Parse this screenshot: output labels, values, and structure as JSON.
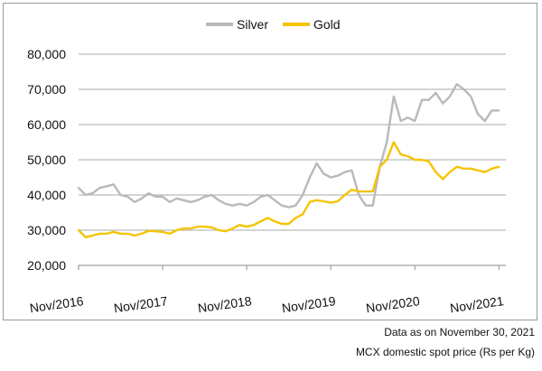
{
  "chart_data": {
    "type": "line",
    "y_ticks": [
      "20,000",
      "30,000",
      "40,000",
      "50,000",
      "60,000",
      "70,000",
      "80,000"
    ],
    "ylim": [
      20000,
      80000
    ],
    "x_ticks": [
      "Nov/2016",
      "Nov/2017",
      "Nov/2018",
      "Nov/2019",
      "Nov/2020",
      "Nov/2021"
    ],
    "xlim": [
      "2016-11",
      "2021-12"
    ],
    "grid": "horizontal",
    "legend_position": "top-center",
    "series": [
      {
        "name": "Silver",
        "color": "#b9b9b9",
        "points": [
          [
            "2016-11",
            42000
          ],
          [
            "2016-12",
            40000
          ],
          [
            "2017-01",
            40500
          ],
          [
            "2017-02",
            42000
          ],
          [
            "2017-03",
            42500
          ],
          [
            "2017-04",
            43000
          ],
          [
            "2017-05",
            40000
          ],
          [
            "2017-06",
            39500
          ],
          [
            "2017-07",
            38000
          ],
          [
            "2017-08",
            39000
          ],
          [
            "2017-09",
            40500
          ],
          [
            "2017-10",
            39500
          ],
          [
            "2017-11",
            39500
          ],
          [
            "2017-12",
            38000
          ],
          [
            "2018-01",
            39000
          ],
          [
            "2018-02",
            38500
          ],
          [
            "2018-03",
            38000
          ],
          [
            "2018-04",
            38500
          ],
          [
            "2018-05",
            39500
          ],
          [
            "2018-06",
            40000
          ],
          [
            "2018-07",
            38500
          ],
          [
            "2018-08",
            37500
          ],
          [
            "2018-09",
            37000
          ],
          [
            "2018-10",
            37500
          ],
          [
            "2018-11",
            37000
          ],
          [
            "2018-12",
            38000
          ],
          [
            "2019-01",
            39500
          ],
          [
            "2019-02",
            40000
          ],
          [
            "2019-03",
            38500
          ],
          [
            "2019-04",
            37000
          ],
          [
            "2019-05",
            36500
          ],
          [
            "2019-06",
            37000
          ],
          [
            "2019-07",
            40000
          ],
          [
            "2019-08",
            45000
          ],
          [
            "2019-09",
            49000
          ],
          [
            "2019-10",
            46000
          ],
          [
            "2019-11",
            45000
          ],
          [
            "2019-12",
            45500
          ],
          [
            "2020-01",
            46500
          ],
          [
            "2020-02",
            47000
          ],
          [
            "2020-03",
            40000
          ],
          [
            "2020-04",
            37000
          ],
          [
            "2020-05",
            37000
          ],
          [
            "2020-06",
            48000
          ],
          [
            "2020-07",
            55000
          ],
          [
            "2020-08",
            68000
          ],
          [
            "2020-09",
            61000
          ],
          [
            "2020-10",
            62000
          ],
          [
            "2020-11",
            61000
          ],
          [
            "2020-12",
            67000
          ],
          [
            "2021-01",
            67000
          ],
          [
            "2021-02",
            69000
          ],
          [
            "2021-03",
            66000
          ],
          [
            "2021-04",
            68000
          ],
          [
            "2021-05",
            71500
          ],
          [
            "2021-06",
            70000
          ],
          [
            "2021-07",
            68000
          ],
          [
            "2021-08",
            63000
          ],
          [
            "2021-09",
            61000
          ],
          [
            "2021-10",
            64000
          ],
          [
            "2021-11",
            64000
          ]
        ]
      },
      {
        "name": "Gold",
        "color": "#f5c400",
        "points": [
          [
            "2016-11",
            30000
          ],
          [
            "2016-12",
            28000
          ],
          [
            "2017-01",
            28500
          ],
          [
            "2017-02",
            29000
          ],
          [
            "2017-03",
            29000
          ],
          [
            "2017-04",
            29500
          ],
          [
            "2017-05",
            29000
          ],
          [
            "2017-06",
            29000
          ],
          [
            "2017-07",
            28500
          ],
          [
            "2017-08",
            29000
          ],
          [
            "2017-09",
            29800
          ],
          [
            "2017-10",
            29700
          ],
          [
            "2017-11",
            29500
          ],
          [
            "2017-12",
            29000
          ],
          [
            "2018-01",
            30000
          ],
          [
            "2018-02",
            30500
          ],
          [
            "2018-03",
            30500
          ],
          [
            "2018-04",
            31000
          ],
          [
            "2018-05",
            31000
          ],
          [
            "2018-06",
            30800
          ],
          [
            "2018-07",
            30000
          ],
          [
            "2018-08",
            29700
          ],
          [
            "2018-09",
            30500
          ],
          [
            "2018-10",
            31500
          ],
          [
            "2018-11",
            31000
          ],
          [
            "2018-12",
            31500
          ],
          [
            "2019-01",
            32500
          ],
          [
            "2019-02",
            33500
          ],
          [
            "2019-03",
            32500
          ],
          [
            "2019-04",
            31800
          ],
          [
            "2019-05",
            31800
          ],
          [
            "2019-06",
            33500
          ],
          [
            "2019-07",
            34500
          ],
          [
            "2019-08",
            38000
          ],
          [
            "2019-09",
            38500
          ],
          [
            "2019-10",
            38200
          ],
          [
            "2019-11",
            37800
          ],
          [
            "2019-12",
            38200
          ],
          [
            "2020-01",
            40000
          ],
          [
            "2020-02",
            41500
          ],
          [
            "2020-03",
            41000
          ],
          [
            "2020-04",
            41000
          ],
          [
            "2020-05",
            41000
          ],
          [
            "2020-06",
            48000
          ],
          [
            "2020-07",
            50000
          ],
          [
            "2020-08",
            55000
          ],
          [
            "2020-09",
            51500
          ],
          [
            "2020-10",
            51000
          ],
          [
            "2020-11",
            50000
          ],
          [
            "2020-12",
            50000
          ],
          [
            "2021-01",
            49500
          ],
          [
            "2021-02",
            46500
          ],
          [
            "2021-03",
            44500
          ],
          [
            "2021-04",
            46500
          ],
          [
            "2021-05",
            48000
          ],
          [
            "2021-06",
            47500
          ],
          [
            "2021-07",
            47500
          ],
          [
            "2021-08",
            47000
          ],
          [
            "2021-09",
            46500
          ],
          [
            "2021-10",
            47500
          ],
          [
            "2021-11",
            48000
          ]
        ]
      }
    ]
  },
  "notes": {
    "date_note": "Data as on November 30, 2021",
    "source_note": "MCX domestic spot price (Rs per Kg)"
  }
}
